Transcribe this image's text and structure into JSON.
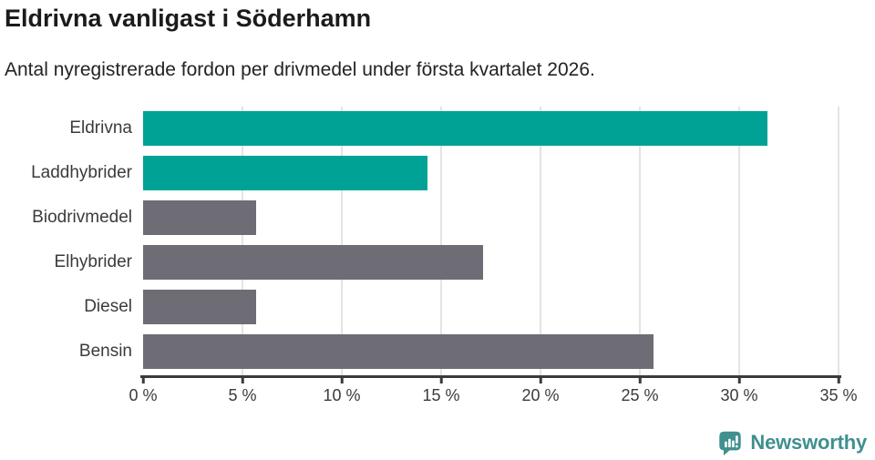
{
  "chart_data": {
    "type": "bar",
    "orientation": "horizontal",
    "title": "Eldrivna vanligast i Söderhamn",
    "subtitle": "Antal nyregistrerade fordon per drivmedel under första kvartalet 2026.",
    "categories": [
      "Eldrivna",
      "Laddhybrider",
      "Biodrivmedel",
      "Elhybrider",
      "Diesel",
      "Bensin"
    ],
    "values": [
      31.4,
      14.3,
      5.7,
      17.1,
      5.7,
      25.7
    ],
    "unit": "%",
    "bar_colors": [
      "#00a296",
      "#00a296",
      "#6e6d76",
      "#6e6d76",
      "#6e6d76",
      "#6e6d76"
    ],
    "xlabel": "",
    "ylabel": "",
    "xlim": [
      0,
      35
    ],
    "x_ticks": [
      0,
      5,
      10,
      15,
      20,
      25,
      30,
      35
    ],
    "x_tick_labels": [
      "0 %",
      "5 %",
      "10 %",
      "15 %",
      "20 %",
      "25 %",
      "30 %",
      "35 %"
    ],
    "grid": "vertical",
    "legend": "none",
    "gridline_color": "#e4e4e4",
    "axis_color": "#3b3b3b",
    "label_color": "#3b3b3b"
  },
  "footer": {
    "brand": "Newsworthy",
    "brand_color": "#3f908e",
    "logo_icon": "speech-bubble-bar-chart-icon"
  },
  "colors": {
    "accent_teal": "#00a296",
    "neutral_gray": "#6e6d76",
    "title_text": "#1b1b1b",
    "background": "#ffffff"
  }
}
